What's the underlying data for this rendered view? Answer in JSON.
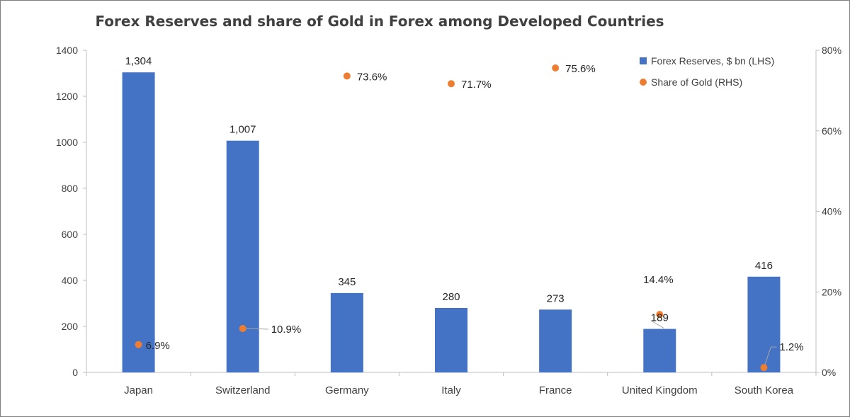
{
  "chart_data": {
    "type": "bar",
    "title": "Forex Reserves and share of Gold in Forex among Developed Countries",
    "categories": [
      "Japan",
      "Switzerland",
      "Germany",
      "Italy",
      "France",
      "United Kingdom",
      "South Korea"
    ],
    "series": [
      {
        "name": "Forex Reserves, $ bn (LHS)",
        "type": "bar",
        "axis": "left",
        "values": [
          1304,
          1007,
          345,
          280,
          273,
          189,
          416
        ],
        "labels": [
          "1,304",
          "1,007",
          "345",
          "280",
          "273",
          "189",
          "416"
        ],
        "color": "#4472c4"
      },
      {
        "name": "Share of Gold (RHS)",
        "type": "scatter",
        "axis": "right",
        "values": [
          6.9,
          10.9,
          73.6,
          71.7,
          75.6,
          14.4,
          1.2
        ],
        "labels": [
          "6.9%",
          "10.9%",
          "73.6%",
          "71.7%",
          "75.6%",
          "14.4%",
          "1.2%"
        ],
        "color": "#ed7d31"
      }
    ],
    "y_left": {
      "min": 0,
      "max": 1400,
      "ticks": [
        "0",
        "200",
        "400",
        "600",
        "800",
        "1000",
        "1200",
        "1400"
      ]
    },
    "y_right": {
      "min": 0,
      "max": 80,
      "ticks": [
        "0%",
        "20%",
        "40%",
        "60%",
        "80%"
      ]
    },
    "legend": "top-right",
    "grid": false
  }
}
